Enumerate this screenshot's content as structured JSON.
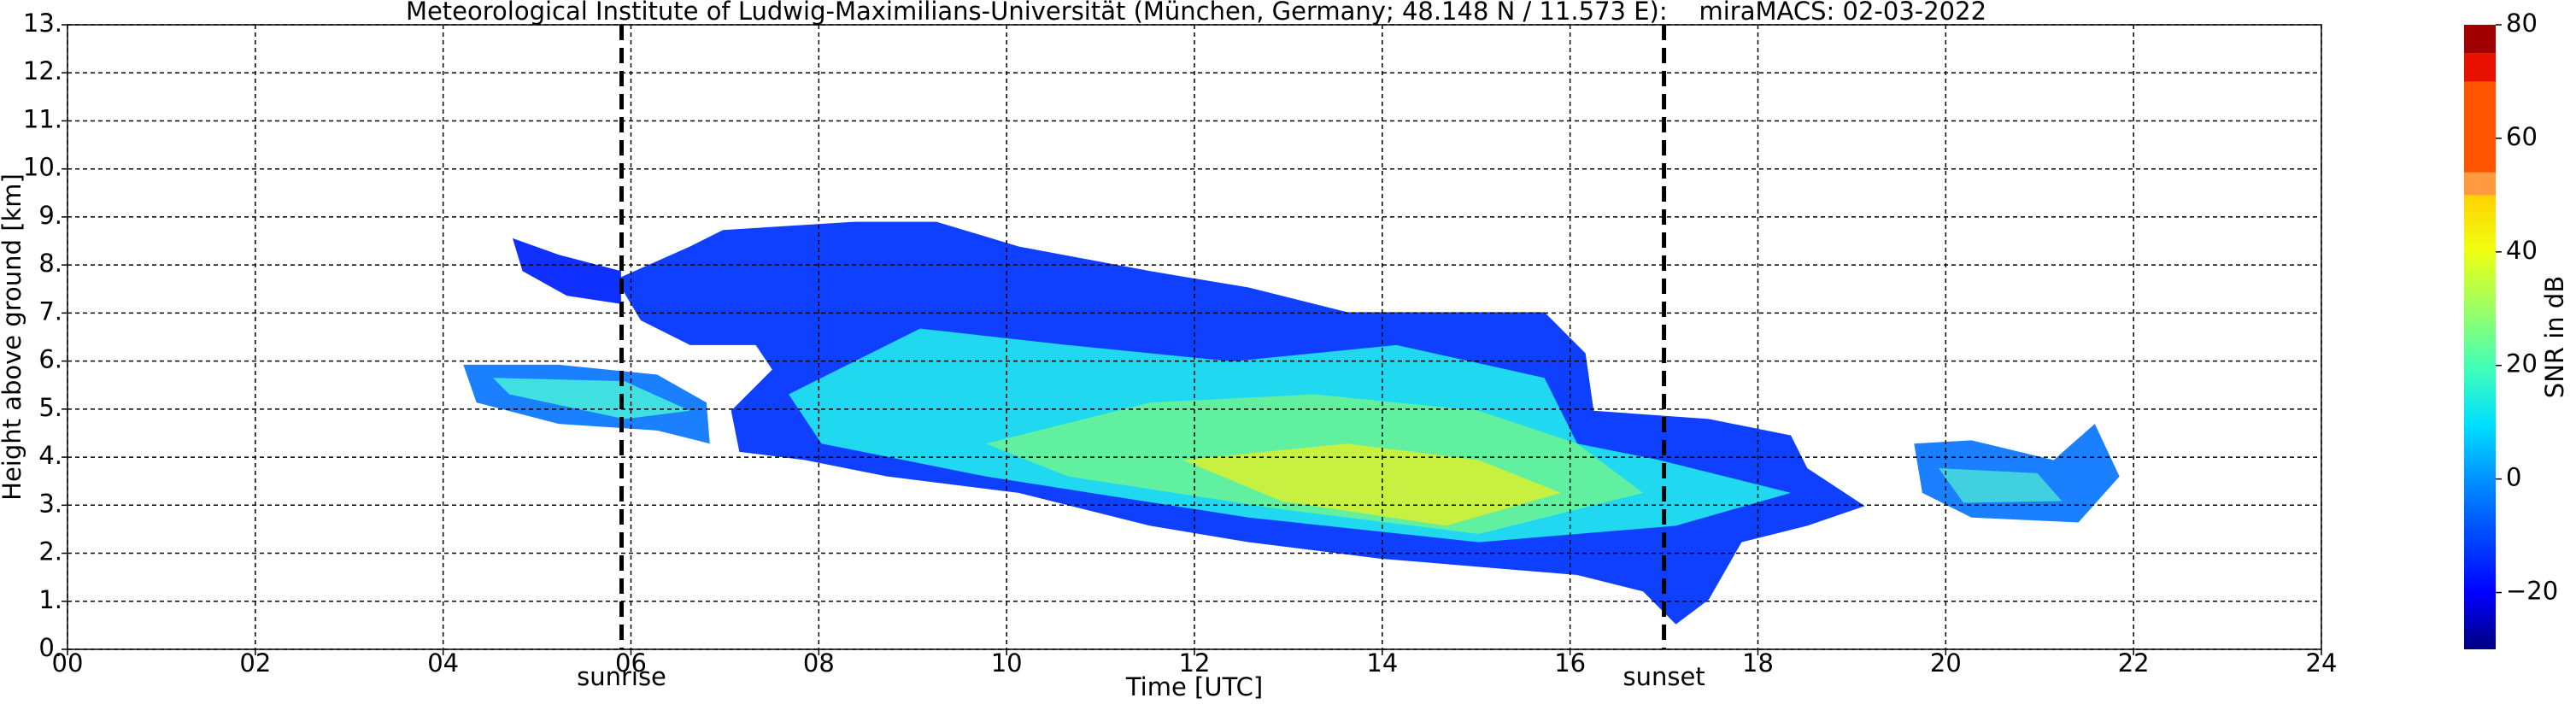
{
  "chart_data": {
    "type": "heatmap",
    "title": "Meteorological Institute of Ludwig-Maximilians-Universität (München, Germany; 48.148 N / 11.573 E):    miraMACS: 02-03-2022",
    "x_label": "Time [UTC]",
    "y_label": "Height above ground [km]",
    "xlim": [
      0,
      24
    ],
    "xticks": [
      {
        "value": 0,
        "label": "00"
      },
      {
        "value": 2,
        "label": "02"
      },
      {
        "value": 4,
        "label": "04"
      },
      {
        "value": 6,
        "label": "06"
      },
      {
        "value": 8,
        "label": "08"
      },
      {
        "value": 10,
        "label": "10"
      },
      {
        "value": 12,
        "label": "12"
      },
      {
        "value": 14,
        "label": "14"
      },
      {
        "value": 16,
        "label": "16"
      },
      {
        "value": 18,
        "label": "18"
      },
      {
        "value": 20,
        "label": "20"
      },
      {
        "value": 22,
        "label": "22"
      },
      {
        "value": 24,
        "label": "24"
      }
    ],
    "ylim": [
      0,
      13
    ],
    "yticks": [
      {
        "value": 0,
        "label": "0."
      },
      {
        "value": 1,
        "label": "1."
      },
      {
        "value": 2,
        "label": "2."
      },
      {
        "value": 3,
        "label": "3."
      },
      {
        "value": 4,
        "label": "4."
      },
      {
        "value": 5,
        "label": "5."
      },
      {
        "value": 6,
        "label": "6."
      },
      {
        "value": 7,
        "label": "7."
      },
      {
        "value": 8,
        "label": "8."
      },
      {
        "value": 9,
        "label": "9."
      },
      {
        "value": 10,
        "label": "10."
      },
      {
        "value": 11,
        "label": "11."
      },
      {
        "value": 12,
        "label": "12."
      },
      {
        "value": 13,
        "label": "13."
      }
    ],
    "grid": true,
    "annotations": [
      {
        "label": "sunrise",
        "x": 5.9
      },
      {
        "label": "sunset",
        "x": 17.0
      }
    ],
    "colorbar": {
      "label": "SNR in dB",
      "clim": [
        -30,
        80
      ],
      "ticks": [
        {
          "value": -20,
          "label": "−20"
        },
        0,
        20,
        40,
        60,
        80
      ]
    }
  }
}
